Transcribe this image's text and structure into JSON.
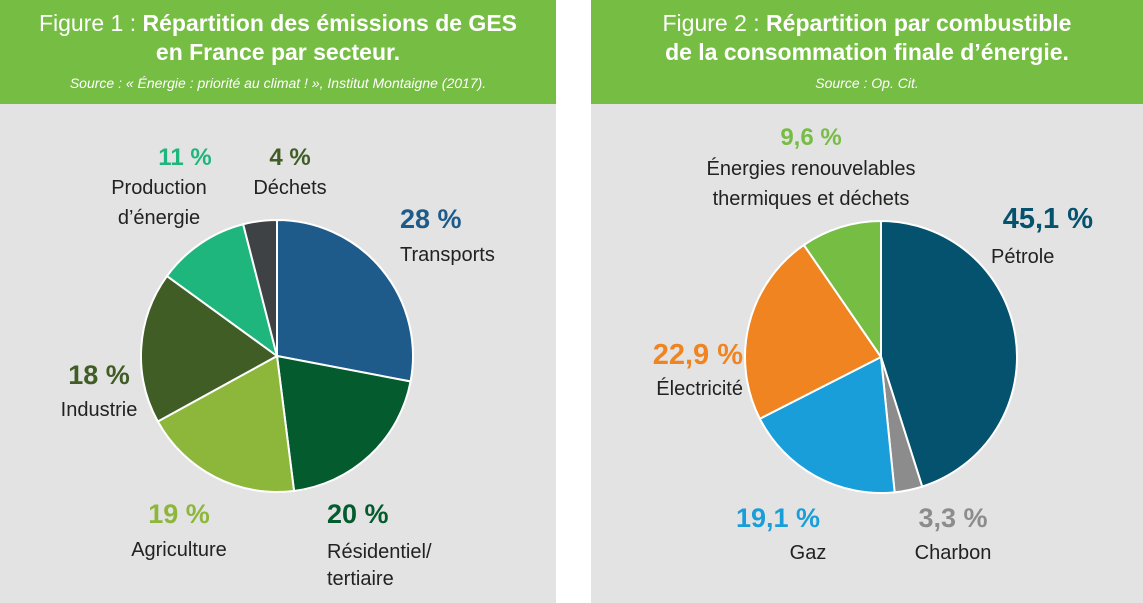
{
  "chart_data": [
    {
      "type": "pie",
      "title_prefix": "Figure 1 : ",
      "title_line1": "Répartition des émissions de GES",
      "title_line2": "en France par secteur.",
      "source": "Source : « Énergie : priorité au climat ! », Institut Montaigne (2017).",
      "slices": [
        {
          "pct": "28 %",
          "value": 28,
          "label_lines": [
            "Transports"
          ],
          "color": "#1f5b8a"
        },
        {
          "pct": "20 %",
          "value": 20,
          "label_lines": [
            "Résidentiel/",
            "tertiaire"
          ],
          "color": "#045b2e"
        },
        {
          "pct": "19 %",
          "value": 19,
          "label_lines": [
            "Agriculture"
          ],
          "color": "#8db73b"
        },
        {
          "pct": "18 %",
          "value": 18,
          "label_lines": [
            "Industrie"
          ],
          "color": "#405d25"
        },
        {
          "pct": "11 %",
          "value": 11,
          "label_lines": [
            "Production",
            "d’énergie"
          ],
          "color": "#1fb67d"
        },
        {
          "pct": "4 %",
          "value": 4,
          "label_lines": [
            "Déchets"
          ],
          "color": "#3f4244"
        }
      ]
    },
    {
      "type": "pie",
      "title_prefix": "Figure 2 : ",
      "title_line1": "Répartition par combustible",
      "title_line2": "de la consommation finale d’énergie.",
      "source": "Source : Op. Cit.",
      "slices": [
        {
          "pct": "45,1 %",
          "value": 45.1,
          "label_lines": [
            "Pétrole"
          ],
          "color": "#04526e"
        },
        {
          "pct": "3,3 %",
          "value": 3.3,
          "label_lines": [
            "Charbon"
          ],
          "color": "#8c8c8c"
        },
        {
          "pct": "19,1 %",
          "value": 19.1,
          "label_lines": [
            "Gaz"
          ],
          "color": "#1a9ed9"
        },
        {
          "pct": "22,9 %",
          "value": 22.9,
          "label_lines": [
            "Électricité"
          ],
          "color": "#f08421"
        },
        {
          "pct": "9,6 %",
          "value": 9.6,
          "label_lines": [
            "Énergies renouvelables",
            "thermiques et déchets"
          ],
          "color": "#76bd43"
        }
      ]
    }
  ]
}
